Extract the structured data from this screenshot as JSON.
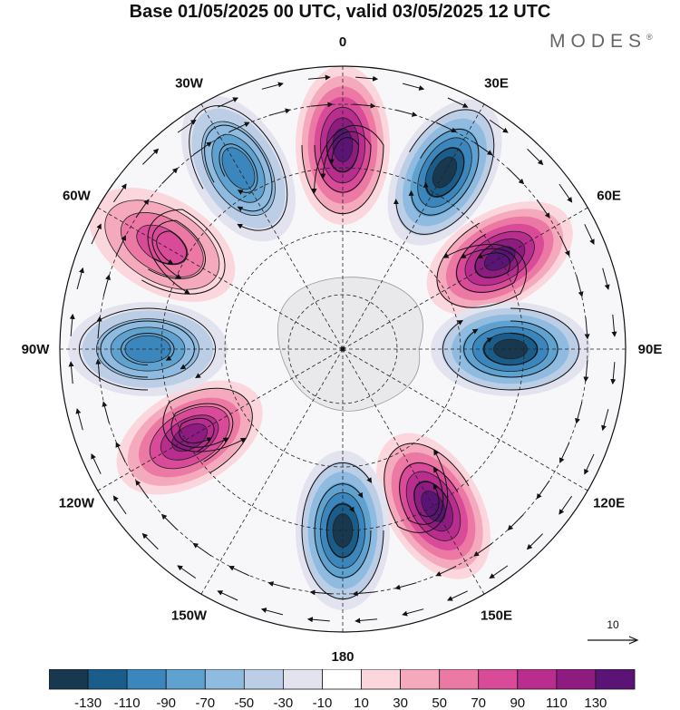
{
  "header": {
    "title": "Base 01/05/2025 00 UTC, valid 03/05/2025 12 UTC",
    "brand": "MODES",
    "brand_mark": "®"
  },
  "map": {
    "projection": "polar-stereographic",
    "hemisphere": "south",
    "longitude_labels": [
      "0",
      "30E",
      "60E",
      "90E",
      "120E",
      "150E",
      "180",
      "150W",
      "120W",
      "90W",
      "60W",
      "30W"
    ],
    "field": "wave-number-4 anomaly pattern (alternating positive/negative centers)",
    "anomaly_centers": [
      {
        "lon_label": "0",
        "sign": "positive",
        "max_abs": 130
      },
      {
        "lon_label": "30E",
        "sign": "negative",
        "max_abs": 130
      },
      {
        "lon_label": "60E",
        "sign": "positive",
        "max_abs": 130
      },
      {
        "lon_label": "90E",
        "sign": "negative",
        "max_abs": 130
      },
      {
        "lon_label": "150E",
        "sign": "positive",
        "max_abs": 130
      },
      {
        "lon_label": "180",
        "sign": "negative",
        "max_abs": 130
      },
      {
        "lon_label": "120W",
        "sign": "positive",
        "max_abs": 110
      },
      {
        "lon_label": "90W",
        "sign": "negative",
        "max_abs": 90
      },
      {
        "lon_label": "60W",
        "sign": "positive",
        "max_abs": 70
      },
      {
        "lon_label": "30W",
        "sign": "negative",
        "max_abs": 90
      }
    ],
    "reference_vector_label": "10"
  },
  "colorbar": {
    "tick_labels": [
      "-130",
      "-110",
      "-90",
      "-70",
      "-50",
      "-30",
      "-10",
      "10",
      "30",
      "50",
      "70",
      "90",
      "110",
      "130"
    ],
    "colors": [
      "#17384f",
      "#1a5d8b",
      "#3a86bd",
      "#5fa1cf",
      "#8ebbdf",
      "#bccde6",
      "#e3e3ef",
      "#ffffff",
      "#fbd6dc",
      "#f5a9bd",
      "#ec79a4",
      "#d94a98",
      "#b82d8e",
      "#8d1b80",
      "#5b1475"
    ]
  }
}
